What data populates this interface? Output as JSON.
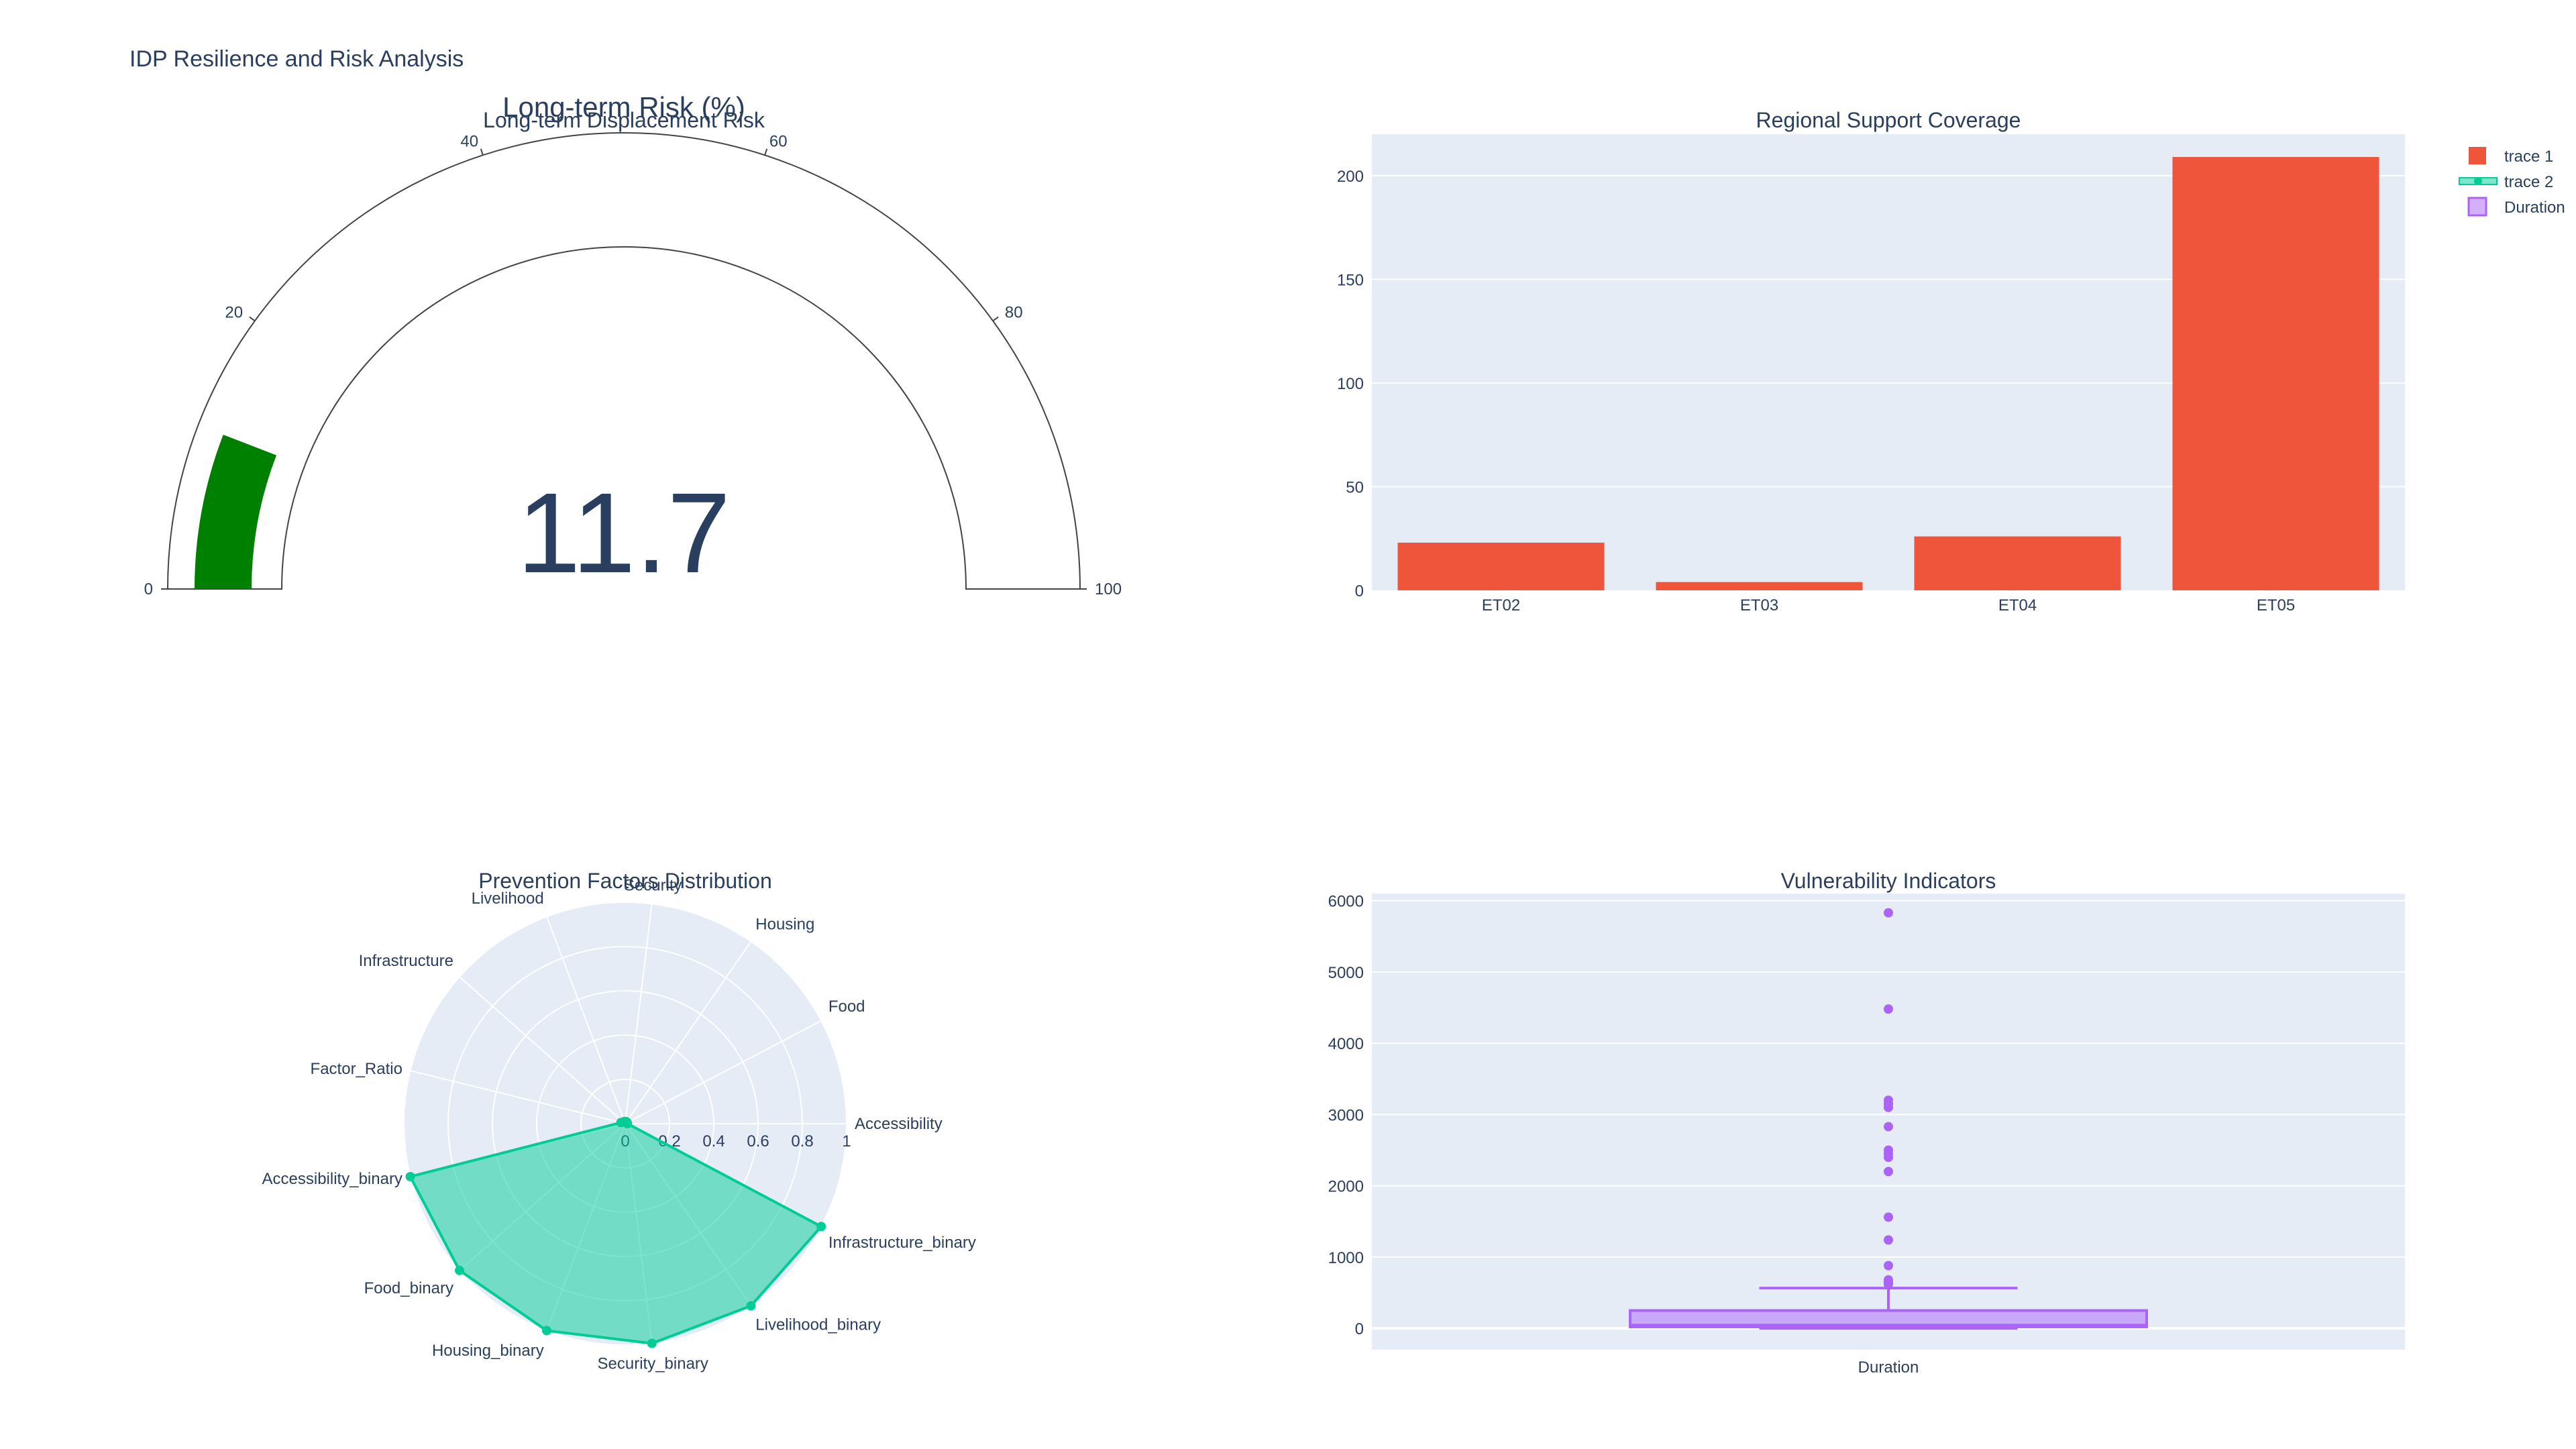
{
  "page": {
    "title": "IDP Resilience and Risk Analysis"
  },
  "colors": {
    "plot_bg": "#e5ecf6",
    "text": "#2a3f5f",
    "gauge_bar": "#008000",
    "bar": "#ef553b",
    "radar": "#00cc96",
    "box": "#ab63fa"
  },
  "legend": {
    "items": [
      {
        "label": "trace 1",
        "marker": "square",
        "color": "#ef553b"
      },
      {
        "label": "trace 2",
        "marker": "line-marker",
        "color": "#00cc96"
      },
      {
        "label": "Duration",
        "marker": "box",
        "color": "#ab63fa"
      }
    ]
  },
  "chart_data": [
    {
      "type": "gauge",
      "title": "Long-term Risk (%)",
      "subtitle": "Long-term Displacement Risk",
      "value": 11.7,
      "value_label": "11.7",
      "range": [
        0,
        100
      ],
      "ticks": [
        0,
        20,
        40,
        60,
        80,
        100
      ],
      "bar_color": "#008000"
    },
    {
      "type": "bar",
      "title": "Regional Support Coverage",
      "categories": [
        "ET02",
        "ET03",
        "ET04",
        "ET05"
      ],
      "values": [
        23,
        4,
        26,
        209
      ],
      "ylim": [
        0,
        220
      ],
      "yticks": [
        0,
        50,
        100,
        150,
        200
      ],
      "series_name": "trace 1",
      "color": "#ef553b"
    },
    {
      "type": "radar",
      "title": "Prevention Factors Distribution",
      "axes": [
        "Accessibility",
        "Food",
        "Housing",
        "Security",
        "Livelihood",
        "Infrastructure",
        "Factor_Ratio",
        "Accessibility_binary",
        "Food_binary",
        "Housing_binary",
        "Security_binary",
        "Livelihood_binary",
        "Infrastructure_binary"
      ],
      "values": [
        0.01,
        0.01,
        0.01,
        0.01,
        0.01,
        0.01,
        0.02,
        1,
        1,
        1,
        1,
        1,
        1
      ],
      "radial_ticks": [
        "0",
        "0.2",
        "0.4",
        "0.6",
        "0.8",
        "1"
      ],
      "radial_range": [
        0,
        1
      ],
      "series_name": "trace 2",
      "color": "#00cc96"
    },
    {
      "type": "box",
      "title": "Vulnerability Indicators",
      "category": "Duration",
      "ylim": [
        -300,
        6100
      ],
      "yticks": [
        0,
        1000,
        2000,
        3000,
        4000,
        5000,
        6000
      ],
      "whisker_low": 0,
      "q1": 20,
      "median": 45,
      "q3": 250,
      "whisker_high": 565,
      "outliers": [
        5830,
        4480,
        3200,
        3150,
        3100,
        2830,
        2500,
        2450,
        2400,
        2200,
        1560,
        1240,
        880,
        680,
        650,
        620
      ],
      "series_name": "Duration",
      "color": "#ab63fa"
    }
  ]
}
